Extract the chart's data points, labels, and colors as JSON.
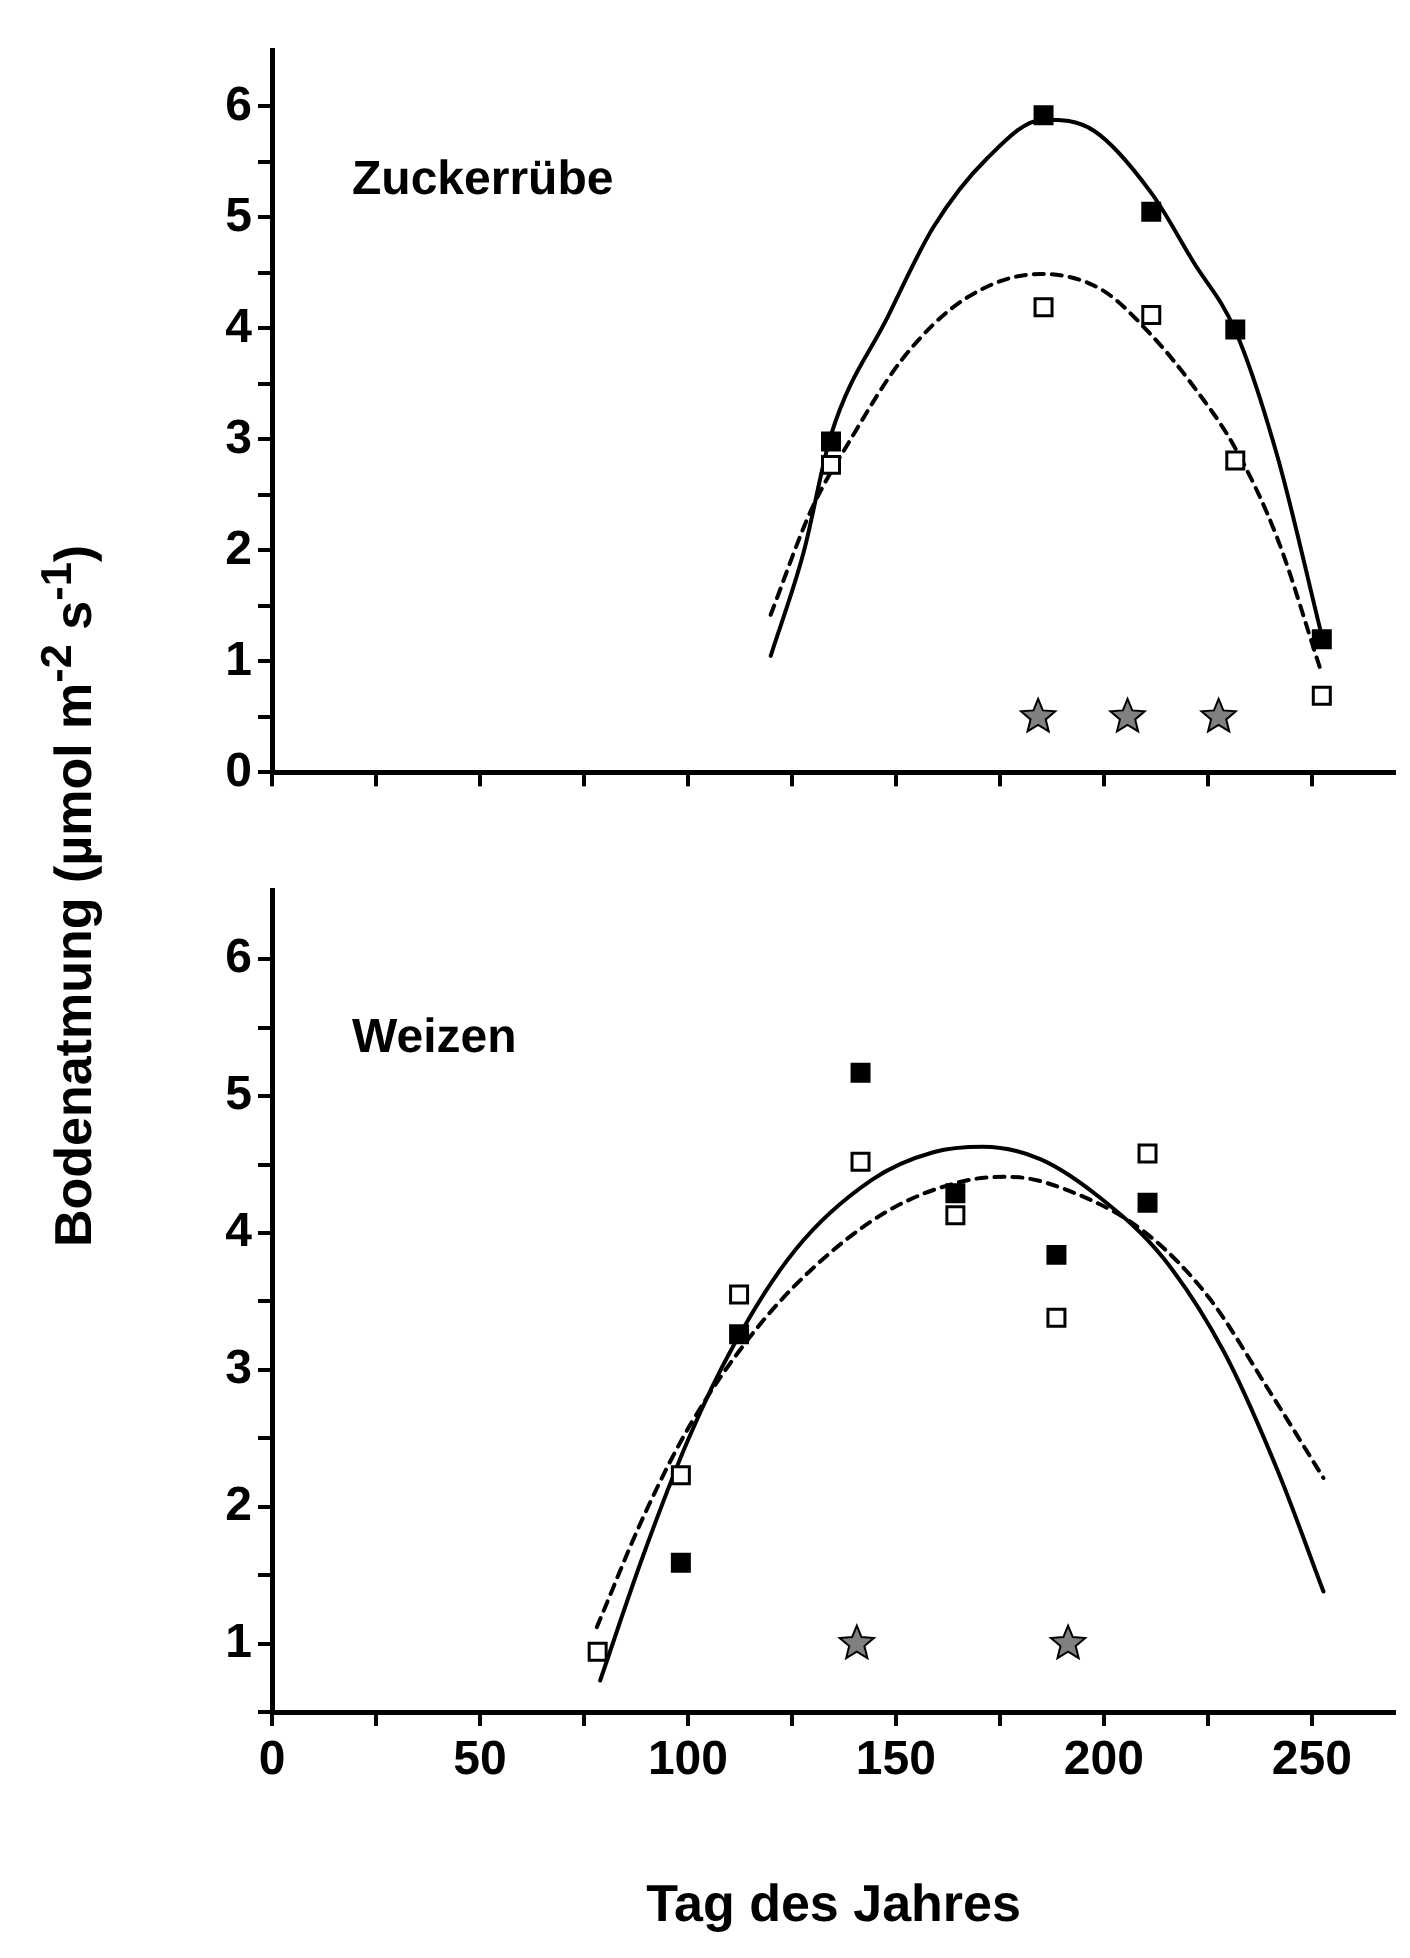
{
  "chart_data": [
    {
      "type": "scatter",
      "title": "Zuckerrübe",
      "ylabel": "Bodenatmung (µmol m$^{-2}$ s$^{-1}$)",
      "xlim": [
        0,
        270
      ],
      "ylim": [
        0,
        6.5
      ],
      "tick_labels": "y",
      "grid": false,
      "legend": false,
      "xticks": [
        {
          "value": 0,
          "label": null
        },
        {
          "value": 25,
          "label": null
        },
        {
          "value": 50,
          "label": null
        },
        {
          "value": 75,
          "label": null
        },
        {
          "value": 100,
          "label": null
        },
        {
          "value": 125,
          "label": null
        },
        {
          "value": 150,
          "label": null
        },
        {
          "value": 175,
          "label": null
        },
        {
          "value": 200,
          "label": null
        },
        {
          "value": 225,
          "label": null
        },
        {
          "value": 250,
          "label": null
        }
      ],
      "yticks": [
        0,
        {
          "value": 0.5,
          "label": null
        },
        1,
        {
          "value": 1.5,
          "label": null
        },
        2,
        {
          "value": 2.5,
          "label": null
        },
        3,
        {
          "value": 3.5,
          "label": null
        },
        4,
        {
          "value": 4.5,
          "label": null
        },
        5,
        {
          "value": 5.5,
          "label": null
        },
        6
      ],
      "series": [
        {
          "type": "scatter",
          "marker": "square",
          "color": "#000000",
          "x": [
            134.4,
            185.5,
            211.4,
            231.6,
            252.4
          ],
          "values": [
            2.98,
            5.92,
            5.05,
            3.99,
            1.2
          ]
        },
        {
          "type": "scatter",
          "marker": "square",
          "color": "#ffffff",
          "x": [
            134.4,
            185.5,
            211.4,
            231.6,
            252.4
          ],
          "values": [
            2.77,
            4.19,
            4.12,
            2.81,
            0.69
          ]
        },
        {
          "type": "scatter",
          "marker": "star",
          "color": "#808080",
          "x": [
            184.2,
            205.7,
            227.6
          ],
          "values": [
            0.5,
            0.5,
            0.5
          ]
        },
        {
          "type": "line",
          "marker": "none",
          "line_style": "solid",
          "color": "#000000",
          "x": [
            119.9,
            127.8,
            134.4,
            148,
            159,
            171.9,
            185.5,
            197.6,
            211.4,
            221.5,
            231.6,
            241.7,
            252.4
          ],
          "values": [
            1.05,
            1.98,
            3.04,
            4.1,
            4.91,
            5.53,
            5.88,
            5.78,
            5.22,
            4.6,
            3.98,
            2.85,
            1.23
          ]
        },
        {
          "type": "line",
          "marker": "none",
          "line_style": "dashed",
          "color": "#000000",
          "x": [
            119.9,
            129.6,
            138.8,
            151.7,
            166.4,
            184.7,
            199.4,
            211.4,
            221.5,
            231.6,
            241.7,
            252.4
          ],
          "values": [
            1.42,
            2.36,
            2.98,
            3.73,
            4.26,
            4.49,
            4.35,
            3.94,
            3.48,
            2.92,
            2.11,
            0.89
          ]
        }
      ]
    },
    {
      "type": "scatter",
      "title": "Weizen",
      "xlabel": "Tag des Jahres",
      "xlim": [
        0,
        270
      ],
      "ylim": [
        0.5,
        6.5
      ],
      "grid": false,
      "legend": false,
      "xticks": [
        0,
        {
          "value": 25,
          "label": null
        },
        50,
        {
          "value": 75,
          "label": null
        },
        100,
        {
          "value": 125,
          "label": null
        },
        150,
        {
          "value": 175,
          "label": null
        },
        200,
        {
          "value": 225,
          "label": null
        },
        250
      ],
      "yticks": [
        {
          "value": 0.5,
          "label": null
        },
        1,
        {
          "value": 1.5,
          "label": null
        },
        2,
        {
          "value": 2.5,
          "label": null
        },
        3,
        {
          "value": 3.5,
          "label": null
        },
        4,
        {
          "value": 4.5,
          "label": null
        },
        5,
        {
          "value": 5.5,
          "label": null
        },
        6
      ],
      "series": [
        {
          "type": "scatter",
          "marker": "square",
          "color": "#000000",
          "x": [
            98.3,
            112.3,
            141.5,
            164.3,
            188.6,
            210.5
          ],
          "values": [
            1.59,
            3.26,
            5.17,
            4.29,
            3.84,
            4.22
          ]
        },
        {
          "type": "scatter",
          "marker": "square",
          "color": "#ffffff",
          "x": [
            78.3,
            98.3,
            112.3,
            141.5,
            164.3,
            188.6,
            210.5
          ],
          "values": [
            0.94,
            2.23,
            3.55,
            4.52,
            4.13,
            3.38,
            4.58
          ]
        },
        {
          "type": "scatter",
          "marker": "star",
          "color": "#808080",
          "x": [
            140.6,
            191.4
          ],
          "values": [
            1.0,
            1.0
          ]
        },
        {
          "type": "line",
          "marker": "none",
          "line_style": "solid",
          "color": "#000000",
          "x": [
            78.9,
            89.2,
            100.2,
            111.2,
            125.9,
            144.3,
            159,
            170.9,
            184.7,
            199.4,
            214.2,
            228.9,
            241.7,
            252.8
          ],
          "values": [
            0.73,
            1.64,
            2.5,
            3.19,
            3.88,
            4.39,
            4.59,
            4.63,
            4.54,
            4.25,
            3.82,
            3.13,
            2.27,
            1.38
          ]
        },
        {
          "type": "line",
          "marker": "none",
          "line_style": "dashed",
          "color": "#000000",
          "x": [
            78.1,
            89.2,
            100.2,
            114.9,
            129.6,
            148,
            166.4,
            177.4,
            193.9,
            210.5,
            225.2,
            239.9,
            252.8
          ],
          "values": [
            1.12,
            1.92,
            2.58,
            3.24,
            3.73,
            4.16,
            4.38,
            4.41,
            4.28,
            3.99,
            3.53,
            2.84,
            2.21
          ]
        }
      ]
    }
  ]
}
